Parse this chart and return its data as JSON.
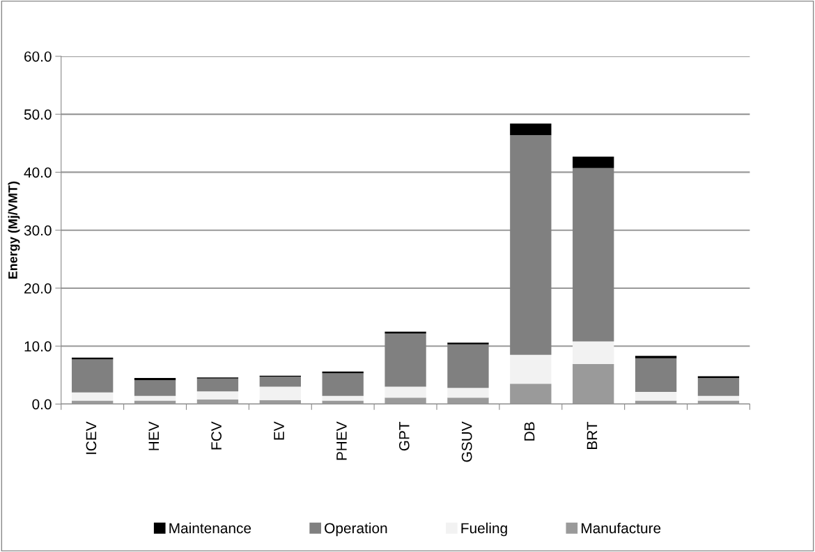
{
  "chart_data": {
    "type": "bar",
    "stacked": true,
    "ylabel": "Energy (Mj/VMT)",
    "categories": [
      "ICEV",
      "HEV",
      "FCV",
      "EV",
      "PHEV",
      "GPT",
      "GSUV",
      "DB",
      "BRT",
      null,
      null
    ],
    "series": [
      {
        "name": "Manufacture",
        "color": "#9a9a9a",
        "values": [
          0.6,
          0.6,
          0.8,
          0.7,
          0.6,
          1.1,
          1.1,
          3.5,
          6.9,
          0.6,
          0.6
        ]
      },
      {
        "name": "Fueling",
        "color": "#f2f2f2",
        "values": [
          1.4,
          0.8,
          1.4,
          2.3,
          0.8,
          1.9,
          1.7,
          5.0,
          3.9,
          1.5,
          0.8
        ]
      },
      {
        "name": "Operation",
        "color": "#808080",
        "values": [
          5.7,
          2.7,
          2.2,
          1.7,
          3.9,
          9.2,
          7.5,
          37.9,
          29.9,
          5.8,
          3.1
        ]
      },
      {
        "name": "Maintenance",
        "color": "#000000",
        "values": [
          0.3,
          0.4,
          0.2,
          0.2,
          0.3,
          0.3,
          0.3,
          2.0,
          2.0,
          0.4,
          0.3
        ]
      }
    ],
    "ylim": [
      0,
      60
    ],
    "yticks": [
      {
        "value": 0,
        "label": "0.0"
      },
      {
        "value": 10,
        "label": "10.0"
      },
      {
        "value": 20,
        "label": "20.0"
      },
      {
        "value": 30,
        "label": "30.0"
      },
      {
        "value": 40,
        "label": "40.0"
      },
      {
        "value": 50,
        "label": "50.0"
      },
      {
        "value": 60,
        "label": "60.0"
      }
    ],
    "grid": "y",
    "legend": "bottom"
  }
}
